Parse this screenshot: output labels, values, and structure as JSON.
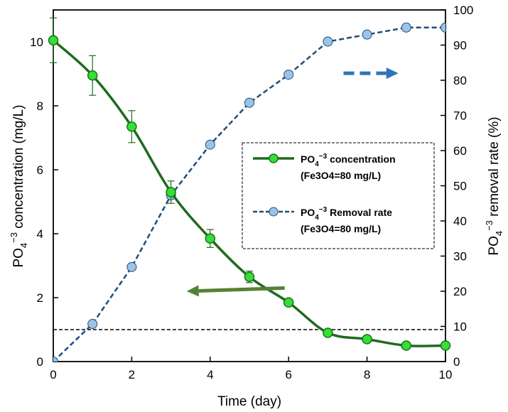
{
  "chart_data": {
    "type": "line",
    "xlabel": "Time (day)",
    "ylabel_left": {
      "pre": "PO",
      "sub": "4",
      "sup": "−3",
      "post": " concentration (mg/L)"
    },
    "ylabel_right": {
      "pre": "PO",
      "sub": "4",
      "sup": "−3",
      "post": " removal rate (%)"
    },
    "xlim": [
      0,
      10
    ],
    "ylim_left": [
      0,
      11
    ],
    "ylim_right": [
      0,
      100
    ],
    "x_ticks": [
      "0",
      "2",
      "4",
      "6",
      "8",
      "10"
    ],
    "y_left_ticks": [
      "0",
      "2",
      "4",
      "6",
      "8",
      "10"
    ],
    "y_right_ticks": [
      "0",
      "10",
      "20",
      "30",
      "40",
      "50",
      "60",
      "70",
      "80",
      "90",
      "100"
    ],
    "x": [
      0,
      1,
      2,
      3,
      4,
      5,
      6,
      7,
      8,
      9,
      10
    ],
    "series": [
      {
        "axis": "left",
        "legend_line1": {
          "pre": "PO",
          "sub": "4",
          "sup": "−3",
          "post": " concentration"
        },
        "legend_line2": "(Fe3O4=80 mg/L)",
        "values": [
          10.05,
          8.95,
          7.35,
          5.3,
          3.85,
          2.65,
          1.85,
          0.9,
          0.7,
          0.5,
          0.5
        ],
        "error": [
          0.7,
          0.62,
          0.5,
          0.35,
          0.28,
          0.18,
          0.1,
          0.08,
          0.06,
          0.05,
          0.05
        ],
        "color": "#1f6b1f",
        "marker_color": "#33e033",
        "style": "solid",
        "smooth": true
      },
      {
        "axis": "right",
        "legend_line1": {
          "pre": "PO",
          "sub": "4",
          "sup": "−3",
          "post": " Removal rate"
        },
        "legend_line2": "(Fe3O4=80 mg/L)",
        "values": [
          0,
          10.7,
          26.9,
          47.3,
          61.7,
          73.6,
          81.6,
          91.0,
          93.0,
          95.0,
          95.0
        ],
        "color": "#1f4e79",
        "marker_color": "#9dc3e6",
        "style": "dashed"
      }
    ],
    "reference_line": {
      "axis": "left",
      "value": 1.0,
      "style": "dashed",
      "color": "#000000"
    },
    "annotations": [
      {
        "type": "arrow",
        "direction": "right",
        "points_to_axis": "right",
        "color": "#2e75b6",
        "style": "dashed",
        "from": [
          7.4,
          82
        ],
        "to": [
          8.8,
          82
        ]
      },
      {
        "type": "arrow",
        "direction": "left",
        "points_to_axis": "left",
        "color": "#548235",
        "style": "solid",
        "from": [
          5.9,
          2.3
        ],
        "to": [
          3.4,
          2.2
        ]
      }
    ],
    "legend": {
      "position": "center-right",
      "border": "dashed"
    },
    "grid": false
  }
}
